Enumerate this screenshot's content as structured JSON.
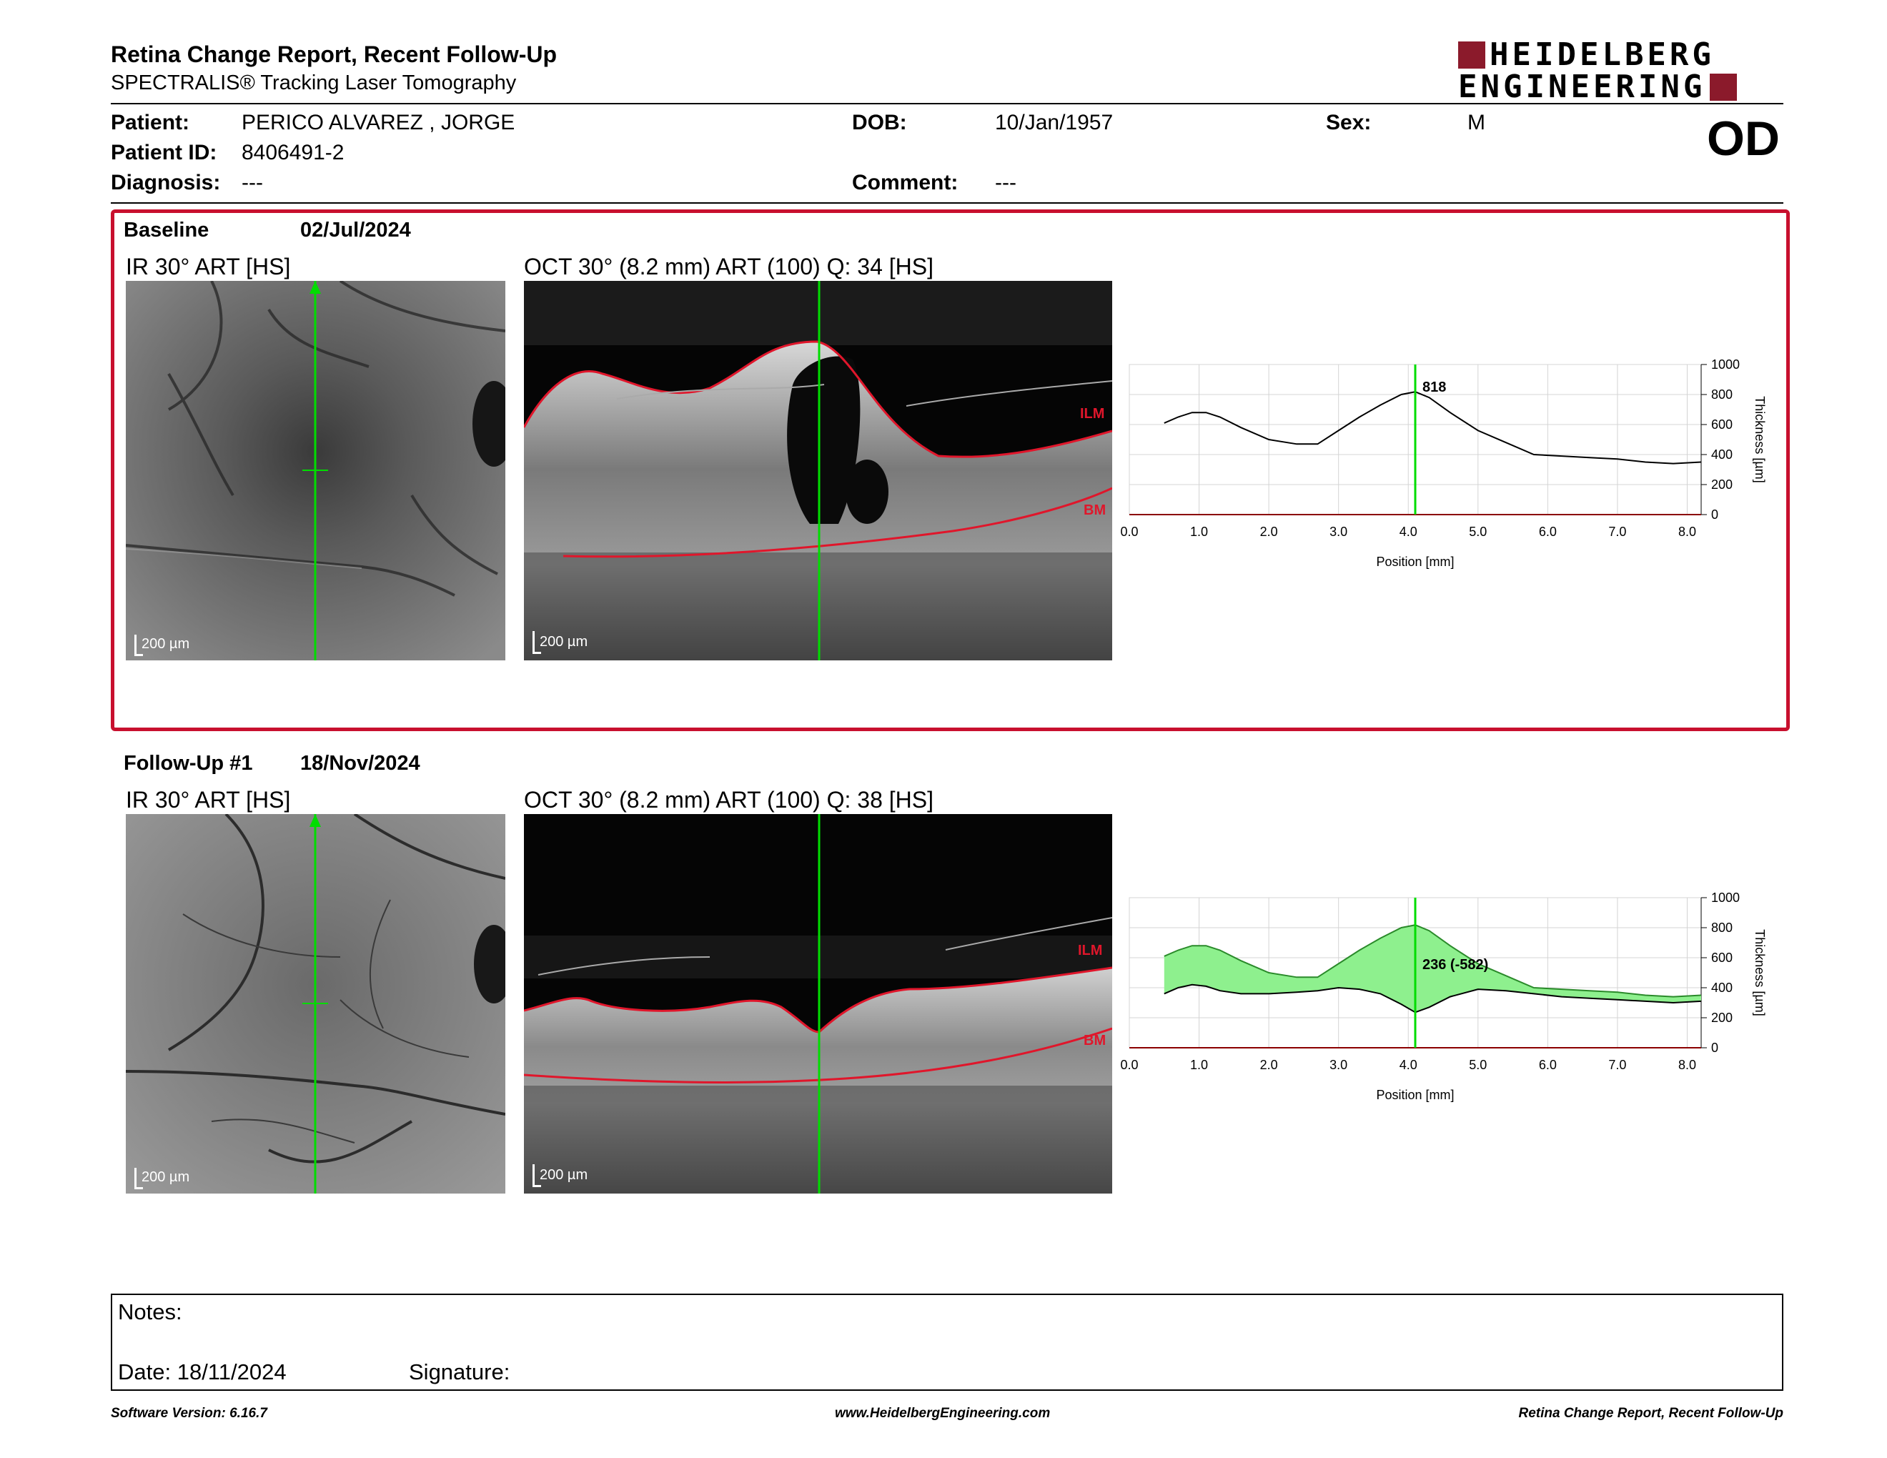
{
  "header": {
    "title": "Retina Change Report, Recent Follow-Up",
    "subtitle": "SPECTRALIS® Tracking Laser Tomography",
    "logo_line1": "HEIDELBERG",
    "logo_line2": "ENGINEERING"
  },
  "patient": {
    "patient_label": "Patient:",
    "patient_value": "PERICO ALVAREZ , JORGE",
    "id_label": "Patient ID:",
    "id_value": "8406491-2",
    "diagnosis_label": "Diagnosis:",
    "diagnosis_value": "---",
    "dob_label": "DOB:",
    "dob_value": "10/Jan/1957",
    "comment_label": "Comment:",
    "comment_value": "---",
    "sex_label": "Sex:",
    "sex_value": "M",
    "eye": "OD"
  },
  "baseline": {
    "label": "Baseline",
    "date": "02/Jul/2024",
    "ir_title": "IR 30° ART [HS]",
    "oct_title": "OCT 30° (8.2 mm) ART (100) Q: 34 [HS]",
    "ir_scale": "200 µm",
    "oct_scale": "200 µm",
    "ilm": "ILM",
    "bm": "BM"
  },
  "followup": {
    "label": "Follow-Up #1",
    "date": "18/Nov/2024",
    "ir_title": "IR 30° ART [HS]",
    "oct_title": "OCT 30° (8.2 mm) ART (100) Q: 38 [HS]",
    "ir_scale": "200 µm",
    "oct_scale": "200 µm",
    "ilm": "ILM",
    "bm": "BM"
  },
  "chart_data": [
    {
      "type": "line",
      "xlabel": "Position [mm]",
      "ylabel": "Thickness [µm]",
      "xlim": [
        0,
        8.2
      ],
      "ylim": [
        0,
        1000
      ],
      "xticks": [
        "0.0",
        "1.0",
        "2.0",
        "3.0",
        "4.0",
        "5.0",
        "6.0",
        "7.0",
        "8.0"
      ],
      "yticks": [
        "0",
        "200",
        "400",
        "600",
        "800",
        "1000"
      ],
      "marker_x": 4.1,
      "marker_label": "818",
      "grid": true,
      "series": [
        {
          "x": [
            0.5,
            0.7,
            0.9,
            1.1,
            1.3,
            1.6,
            2.0,
            2.4,
            2.7,
            3.0,
            3.3,
            3.6,
            3.9,
            4.1,
            4.3,
            4.6,
            5.0,
            5.4,
            5.8,
            6.2,
            6.6,
            7.0,
            7.4,
            7.8,
            8.2
          ],
          "values": [
            610,
            650,
            680,
            680,
            650,
            580,
            500,
            470,
            470,
            560,
            650,
            730,
            800,
            818,
            780,
            680,
            560,
            480,
            400,
            390,
            380,
            370,
            350,
            340,
            350
          ]
        }
      ]
    },
    {
      "type": "area",
      "xlabel": "Position [mm]",
      "ylabel": "Thickness [µm]",
      "xlim": [
        0,
        8.2
      ],
      "ylim": [
        0,
        1000
      ],
      "xticks": [
        "0.0",
        "1.0",
        "2.0",
        "3.0",
        "4.0",
        "5.0",
        "6.0",
        "7.0",
        "8.0"
      ],
      "yticks": [
        "0",
        "200",
        "400",
        "600",
        "800",
        "1000"
      ],
      "marker_x": 4.1,
      "marker_label": "236 (-582)",
      "grid": true,
      "series": [
        {
          "x": [
            0.5,
            0.7,
            0.9,
            1.1,
            1.3,
            1.6,
            2.0,
            2.4,
            2.7,
            3.0,
            3.3,
            3.6,
            3.9,
            4.1,
            4.3,
            4.6,
            5.0,
            5.4,
            5.8,
            6.2,
            6.6,
            7.0,
            7.4,
            7.8,
            8.2
          ],
          "values": [
            610,
            650,
            680,
            680,
            650,
            580,
            500,
            470,
            470,
            560,
            650,
            730,
            800,
            818,
            780,
            680,
            560,
            480,
            400,
            390,
            380,
            370,
            350,
            340,
            350
          ]
        },
        {
          "x": [
            0.5,
            0.7,
            0.9,
            1.1,
            1.3,
            1.6,
            2.0,
            2.4,
            2.7,
            3.0,
            3.3,
            3.6,
            3.9,
            4.1,
            4.3,
            4.6,
            5.0,
            5.4,
            5.8,
            6.2,
            6.6,
            7.0,
            7.4,
            7.8,
            8.2
          ],
          "values": [
            360,
            400,
            420,
            410,
            380,
            360,
            360,
            370,
            380,
            400,
            390,
            360,
            290,
            236,
            270,
            340,
            390,
            380,
            360,
            340,
            330,
            320,
            310,
            300,
            310
          ]
        }
      ]
    }
  ],
  "notes": {
    "notes_label": "Notes:",
    "date_label": "Date: 18/11/2024",
    "signature_label": "Signature:"
  },
  "footer": {
    "left": "Software Version: 6.16.7",
    "center": "www.HeidelbergEngineering.com",
    "right": "Retina Change Report, Recent Follow-Up"
  },
  "colors": {
    "panel_border": "#c8102e",
    "marker": "#00dd00",
    "fill": "#8ef08e",
    "logo": "#8b1a2b"
  }
}
